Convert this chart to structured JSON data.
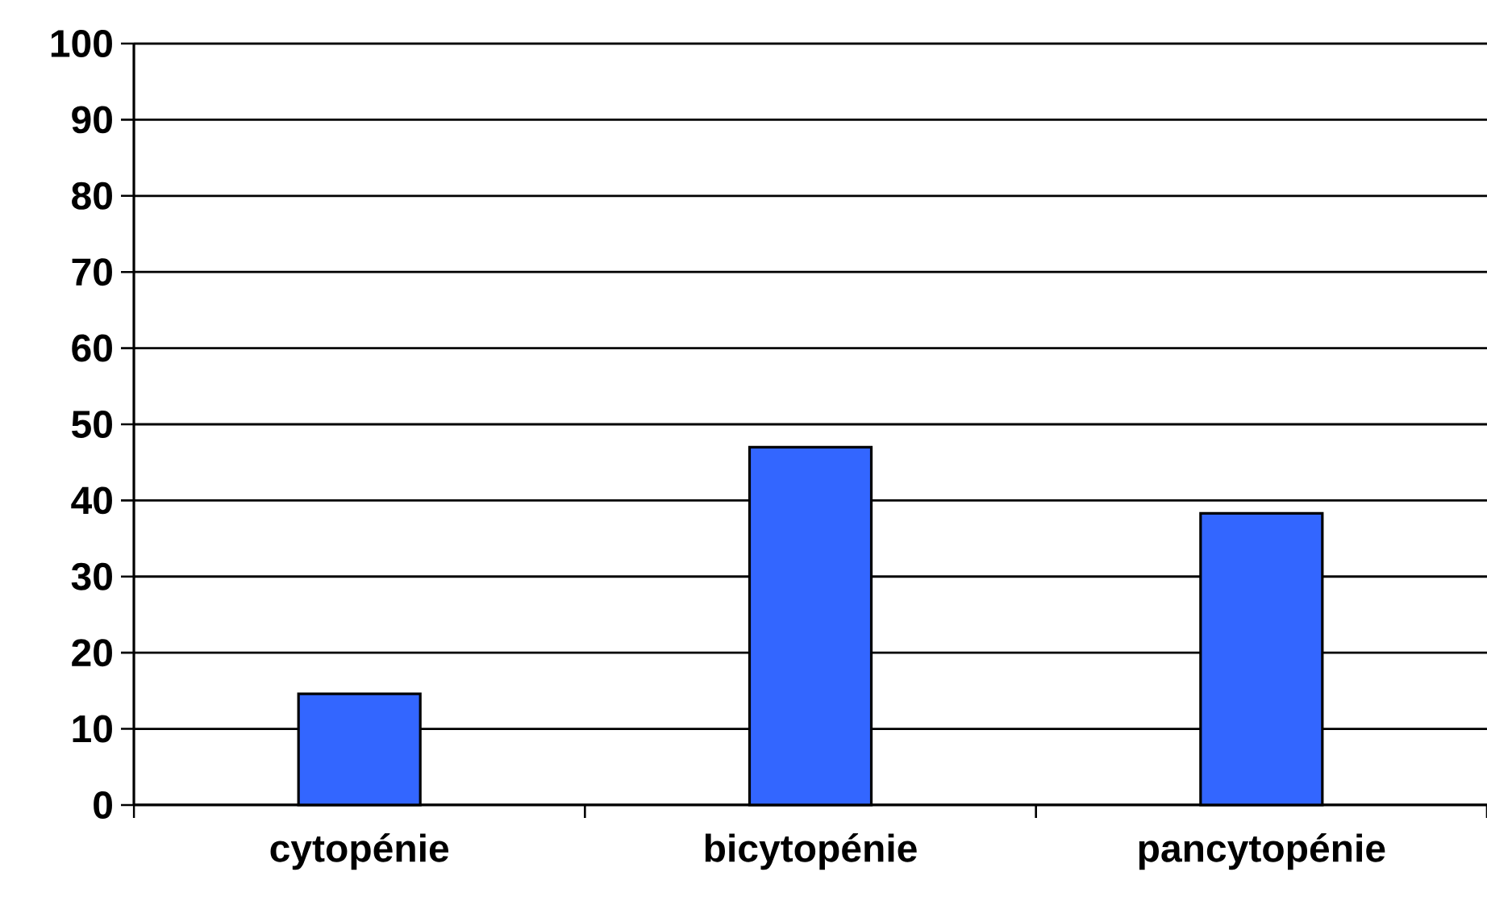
{
  "chart_data": {
    "type": "bar",
    "categories": [
      "cytopénie",
      "bicytopénie",
      "pancytopénie"
    ],
    "values": [
      14.6,
      47,
      38.3
    ],
    "color": "#3366ff",
    "ylim": [
      0,
      100
    ],
    "yticks": [
      0,
      10,
      20,
      30,
      40,
      50,
      60,
      70,
      80,
      90,
      100
    ],
    "grid": "y"
  }
}
